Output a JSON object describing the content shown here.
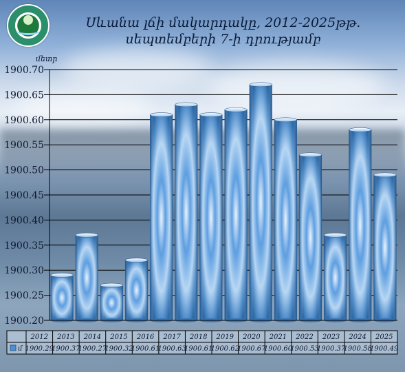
{
  "title_line1": "Սևանա լճի մակարդակը, 2012-2025թթ.",
  "title_line2": "սեպտեմբերի 7-ի դրությամբ",
  "chart_data": {
    "type": "bar",
    "ylabel": "մետր",
    "categories": [
      "2012",
      "2013",
      "2014",
      "2015",
      "2016",
      "2017",
      "2018",
      "2019",
      "2020",
      "2021",
      "2022",
      "2023",
      "2024",
      "2025"
    ],
    "value_labels": [
      "1900.29",
      "1900.37",
      "1900.27",
      "1900.32",
      "1900.61",
      "1900.63",
      "1900.61",
      "1900.62",
      "1900.67",
      "1900.60",
      "1900.53",
      "1900.37",
      "1900.58",
      "1900.49"
    ],
    "series": [
      {
        "values": [
          1900.29,
          1900.37,
          1900.27,
          1900.32,
          1900.61,
          1900.63,
          1900.61,
          1900.62,
          1900.67,
          1900.6,
          1900.53,
          1900.37,
          1900.58,
          1900.49
        ]
      }
    ],
    "ylim": [
      1900.2,
      1900.7
    ],
    "yticks": [
      "1900.20",
      "1900.25",
      "1900.30",
      "1900.35",
      "1900.40",
      "1900.45",
      "1900.50",
      "1900.55",
      "1900.60",
      "1900.65",
      "1900.70"
    ],
    "grid": true,
    "legend_marker": "մ",
    "bar_color": "#4f8fd0",
    "grid_color": "#000000"
  }
}
